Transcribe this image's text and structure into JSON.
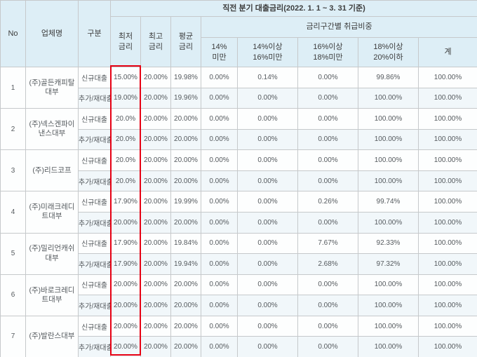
{
  "colors": {
    "header_bg": "#ddeef6",
    "row_alt_bg": "#f1f7fa",
    "border": "#c6c9cb",
    "highlight_red": "#e60013"
  },
  "table": {
    "period_header": "직전 분기 대출금리(2022. 1. 1 ~ 3. 31 기준)",
    "columns": {
      "no": "No",
      "company": "업체명",
      "category": "구분",
      "min_rate": "최저\n금리",
      "max_rate": "최고\n금리",
      "avg_rate": "평균\n금리",
      "share_group": "금리구간별 취급비중",
      "brackets": [
        "14%\n미만",
        "14%이상\n16%미만",
        "16%이상\n18%미만",
        "18%이상\n20%이하",
        "계"
      ]
    },
    "companies": [
      {
        "no": "1",
        "name": "(주)골든캐피탈대부",
        "loans": [
          {
            "type": "신규대출",
            "min": "15.00%",
            "max": "20.00%",
            "avg": "19.98%",
            "b1": "0.00%",
            "b2": "0.14%",
            "b3": "0.00%",
            "b4": "99.86%",
            "total": "100.00%"
          },
          {
            "type": "추가/재대출",
            "min": "19.00%",
            "max": "20.00%",
            "avg": "19.96%",
            "b1": "0.00%",
            "b2": "0.00%",
            "b3": "0.00%",
            "b4": "100.00%",
            "total": "100.00%"
          }
        ]
      },
      {
        "no": "2",
        "name": "(주)넥스겐파이낸스대부",
        "loans": [
          {
            "type": "신규대출",
            "min": "20.0%",
            "max": "20.00%",
            "avg": "20.00%",
            "b1": "0.00%",
            "b2": "0.00%",
            "b3": "0.00%",
            "b4": "100.00%",
            "total": "100.00%"
          },
          {
            "type": "추가/재대출",
            "min": "20.0%",
            "max": "20.00%",
            "avg": "20.00%",
            "b1": "0.00%",
            "b2": "0.00%",
            "b3": "0.00%",
            "b4": "100.00%",
            "total": "100.00%"
          }
        ]
      },
      {
        "no": "3",
        "name": "(주)리드코프",
        "loans": [
          {
            "type": "신규대출",
            "min": "20.0%",
            "max": "20.00%",
            "avg": "20.00%",
            "b1": "0.00%",
            "b2": "0.00%",
            "b3": "0.00%",
            "b4": "100.00%",
            "total": "100.00%"
          },
          {
            "type": "추가/재대출",
            "min": "20.0%",
            "max": "20.00%",
            "avg": "20.00%",
            "b1": "0.00%",
            "b2": "0.00%",
            "b3": "0.00%",
            "b4": "100.00%",
            "total": "100.00%"
          }
        ]
      },
      {
        "no": "4",
        "name": "(주)미래크레디트대부",
        "loans": [
          {
            "type": "신규대출",
            "min": "17.90%",
            "max": "20.00%",
            "avg": "19.99%",
            "b1": "0.00%",
            "b2": "0.00%",
            "b3": "0.26%",
            "b4": "99.74%",
            "total": "100.00%"
          },
          {
            "type": "추가/재대출",
            "min": "20.00%",
            "max": "20.00%",
            "avg": "20.00%",
            "b1": "0.00%",
            "b2": "0.00%",
            "b3": "0.00%",
            "b4": "100.00%",
            "total": "100.00%"
          }
        ]
      },
      {
        "no": "5",
        "name": "(주)밀리언캐쉬대부",
        "loans": [
          {
            "type": "신규대출",
            "min": "17.90%",
            "max": "20.00%",
            "avg": "19.84%",
            "b1": "0.00%",
            "b2": "0.00%",
            "b3": "7.67%",
            "b4": "92.33%",
            "total": "100.00%"
          },
          {
            "type": "추가/재대출",
            "min": "17.90%",
            "max": "20.00%",
            "avg": "19.94%",
            "b1": "0.00%",
            "b2": "0.00%",
            "b3": "2.68%",
            "b4": "97.32%",
            "total": "100.00%"
          }
        ]
      },
      {
        "no": "6",
        "name": "(주)바로크레디트대부",
        "loans": [
          {
            "type": "신규대출",
            "min": "20.00%",
            "max": "20.00%",
            "avg": "20.00%",
            "b1": "0.00%",
            "b2": "0.00%",
            "b3": "0.00%",
            "b4": "100.00%",
            "total": "100.00%"
          },
          {
            "type": "추가/재대출",
            "min": "20.00%",
            "max": "20.00%",
            "avg": "20.00%",
            "b1": "0.00%",
            "b2": "0.00%",
            "b3": "0.00%",
            "b4": "100.00%",
            "total": "100.00%"
          }
        ]
      },
      {
        "no": "7",
        "name": "(주)발란스대부",
        "loans": [
          {
            "type": "신규대출",
            "min": "20.00%",
            "max": "20.00%",
            "avg": "20.00%",
            "b1": "0.00%",
            "b2": "0.00%",
            "b3": "0.00%",
            "b4": "100.00%",
            "total": "100.00%"
          },
          {
            "type": "추가/재대출",
            "min": "20.00%",
            "max": "20.00%",
            "avg": "20.00%",
            "b1": "0.00%",
            "b2": "0.00%",
            "b3": "0.00%",
            "b4": "100.00%",
            "total": "100.00%"
          }
        ]
      }
    ]
  }
}
